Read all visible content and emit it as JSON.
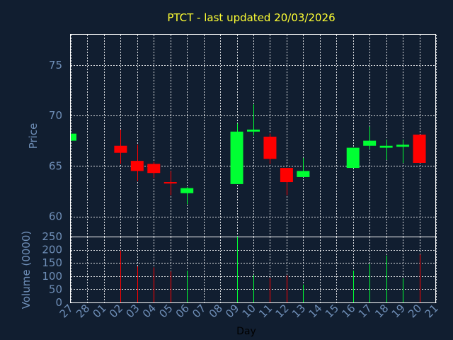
{
  "chart_data": {
    "type": "candlestick",
    "title": "PTCT - last updated 20/03/2026",
    "xlabel": "Day",
    "price_panel": {
      "ylabel": "Price",
      "ylim": [
        58,
        78
      ],
      "yticks": [
        60,
        65,
        70,
        75
      ],
      "grid": true
    },
    "volume_panel": {
      "ylabel": "Volume (0000)",
      "ylim": [
        0,
        250
      ],
      "yticks": [
        0,
        50,
        100,
        150,
        200,
        250
      ],
      "grid": true
    },
    "days": [
      "27",
      "28",
      "01",
      "02",
      "03",
      "04",
      "05",
      "06",
      "07",
      "08",
      "09",
      "10",
      "11",
      "12",
      "13",
      "14",
      "15",
      "16",
      "17",
      "18",
      "19",
      "20",
      "21"
    ],
    "candles": [
      {
        "day": "27",
        "open": 67.5,
        "close": 68.2,
        "high": 68.2,
        "low": 67.5,
        "volume": 0
      },
      {
        "day": "02",
        "open": 67.0,
        "close": 66.3,
        "high": 68.6,
        "low": 65.2,
        "volume": 197
      },
      {
        "day": "03",
        "open": 65.5,
        "close": 64.5,
        "high": 67.1,
        "low": 63.5,
        "volume": 137
      },
      {
        "day": "04",
        "open": 65.2,
        "close": 64.3,
        "high": 65.4,
        "low": 63.8,
        "volume": 133
      },
      {
        "day": "05",
        "open": 63.4,
        "close": 63.3,
        "high": 64.5,
        "low": 62.1,
        "volume": 118
      },
      {
        "day": "06",
        "open": 62.3,
        "close": 62.8,
        "high": 62.9,
        "low": 61.2,
        "volume": 121
      },
      {
        "day": "09",
        "open": 63.2,
        "close": 68.4,
        "high": 69.2,
        "low": 63.2,
        "volume": 250
      },
      {
        "day": "10",
        "open": 68.4,
        "close": 68.6,
        "high": 71.1,
        "low": 68.0,
        "volume": 104
      },
      {
        "day": "11",
        "open": 67.9,
        "close": 65.7,
        "high": 68.2,
        "low": 65.2,
        "volume": 93
      },
      {
        "day": "12",
        "open": 64.8,
        "close": 63.4,
        "high": 64.8,
        "low": 62.1,
        "volume": 103
      },
      {
        "day": "13",
        "open": 63.9,
        "close": 64.5,
        "high": 65.8,
        "low": 63.9,
        "volume": 68
      },
      {
        "day": "16",
        "open": 64.8,
        "close": 66.8,
        "high": 66.8,
        "low": 64.8,
        "volume": 121
      },
      {
        "day": "17",
        "open": 67.0,
        "close": 67.5,
        "high": 68.9,
        "low": 66.7,
        "volume": 146
      },
      {
        "day": "18",
        "open": 66.8,
        "close": 67.0,
        "high": 67.6,
        "low": 65.6,
        "volume": 178
      },
      {
        "day": "19",
        "open": 66.9,
        "close": 67.1,
        "high": 67.6,
        "low": 65.3,
        "volume": 91
      },
      {
        "day": "20",
        "open": 68.1,
        "close": 65.3,
        "high": 68.1,
        "low": 65.3,
        "volume": 182
      }
    ],
    "colors": {
      "background": "#111e30",
      "up": "#00ff33",
      "down": "#ff0000",
      "title": "#ffff33",
      "axis_text": "#6f8fb8",
      "grid": "#ffffff"
    }
  }
}
